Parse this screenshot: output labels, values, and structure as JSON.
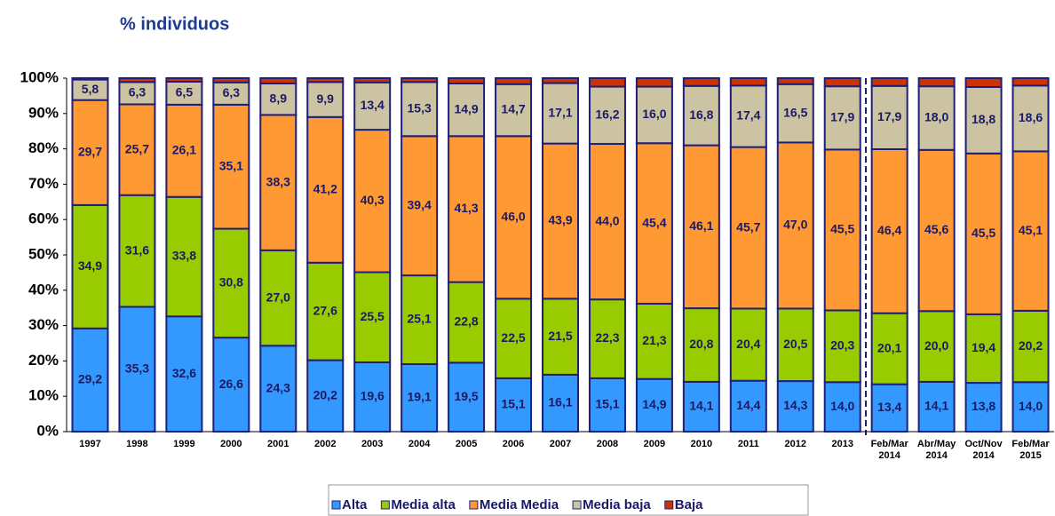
{
  "chart_data": {
    "type": "stacked_bar",
    "title": "% individuos",
    "categories": [
      "1997",
      "1998",
      "1999",
      "2000",
      "2001",
      "2002",
      "2003",
      "2004",
      "2005",
      "2006",
      "2007",
      "2008",
      "2009",
      "2010",
      "2011",
      "2012",
      "2013",
      "Feb/Mar 2014",
      "Abr/May 2014",
      "Oct/Nov 2014",
      "Feb/Mar 2015"
    ],
    "series": [
      {
        "name": "Alta",
        "color": "#3399ff",
        "values": [
          29.2,
          35.3,
          32.6,
          26.6,
          24.3,
          20.2,
          19.6,
          19.1,
          19.5,
          15.1,
          16.1,
          15.1,
          14.9,
          14.1,
          14.4,
          14.3,
          14.0,
          13.4,
          14.1,
          13.8,
          14.0
        ],
        "value_labels": [
          "29,2",
          "35,3",
          "32,6",
          "26,6",
          "24,3",
          "20,2",
          "19,6",
          "19,1",
          "19,5",
          "15,1",
          "16,1",
          "15,1",
          "14,9",
          "14,1",
          "14,4",
          "14,3",
          "14,0",
          "13,4",
          "14,1",
          "13,8",
          "14,0"
        ]
      },
      {
        "name": "Media alta",
        "color": "#99cc00",
        "values": [
          34.9,
          31.6,
          33.8,
          30.8,
          27.0,
          27.6,
          25.5,
          25.1,
          22.8,
          22.5,
          21.5,
          22.3,
          21.3,
          20.8,
          20.4,
          20.5,
          20.3,
          20.1,
          20.0,
          19.4,
          20.2
        ],
        "value_labels": [
          "34,9",
          "31,6",
          "33,8",
          "30,8",
          "27,0",
          "27,6",
          "25,5",
          "25,1",
          "22,8",
          "22,5",
          "21,5",
          "22,3",
          "21,3",
          "20,8",
          "20,4",
          "20,5",
          "20,3",
          "20,1",
          "20,0",
          "19,4",
          "20,2"
        ]
      },
      {
        "name": "Media Media",
        "color": "#ff9933",
        "values": [
          29.7,
          25.7,
          26.1,
          35.1,
          38.3,
          41.2,
          40.3,
          39.4,
          41.3,
          46.0,
          43.9,
          44.0,
          45.4,
          46.1,
          45.7,
          47.0,
          45.5,
          46.4,
          45.6,
          45.5,
          45.1
        ],
        "value_labels": [
          "29,7",
          "25,7",
          "26,1",
          "35,1",
          "38,3",
          "41,2",
          "40,3",
          "39,4",
          "41,3",
          "46,0",
          "43,9",
          "44,0",
          "45,4",
          "46,1",
          "45,7",
          "47,0",
          "45,5",
          "46,4",
          "45,6",
          "45,5",
          "45,1"
        ]
      },
      {
        "name": "Media baja",
        "color": "#ccc3a3",
        "values": [
          5.8,
          6.3,
          6.5,
          6.3,
          8.9,
          9.9,
          13.4,
          15.3,
          14.9,
          14.7,
          17.1,
          16.2,
          16.0,
          16.8,
          17.4,
          16.5,
          17.9,
          17.9,
          18.0,
          18.8,
          18.6
        ],
        "value_labels": [
          "5,8",
          "6,3",
          "6,5",
          "6,3",
          "8,9",
          "9,9",
          "13,4",
          "15,3",
          "14,9",
          "14,7",
          "17,1",
          "16,2",
          "16,0",
          "16,8",
          "17,4",
          "16,5",
          "17,9",
          "17,9",
          "18,0",
          "18,8",
          "18,6"
        ]
      },
      {
        "name": "Baja",
        "color": "#cc3300",
        "values": [
          0.4,
          1.1,
          1.0,
          1.2,
          1.5,
          1.1,
          1.2,
          1.1,
          1.5,
          1.7,
          1.4,
          2.4,
          2.4,
          2.2,
          2.1,
          1.7,
          2.3,
          2.2,
          2.3,
          2.5,
          2.1
        ]
      }
    ],
    "ylim": [
      0,
      100
    ],
    "yticks": [
      {
        "value": 0,
        "label": "0%"
      },
      {
        "value": 10,
        "label": "10%"
      },
      {
        "value": 20,
        "label": "20%"
      },
      {
        "value": 30,
        "label": "30%"
      },
      {
        "value": 40,
        "label": "40%"
      },
      {
        "value": 50,
        "label": "50%"
      },
      {
        "value": 60,
        "label": "60%"
      },
      {
        "value": 70,
        "label": "70%"
      },
      {
        "value": 80,
        "label": "80%"
      },
      {
        "value": 90,
        "label": "90%"
      },
      {
        "value": 100,
        "label": "100%"
      }
    ],
    "legend": "bottom"
  }
}
